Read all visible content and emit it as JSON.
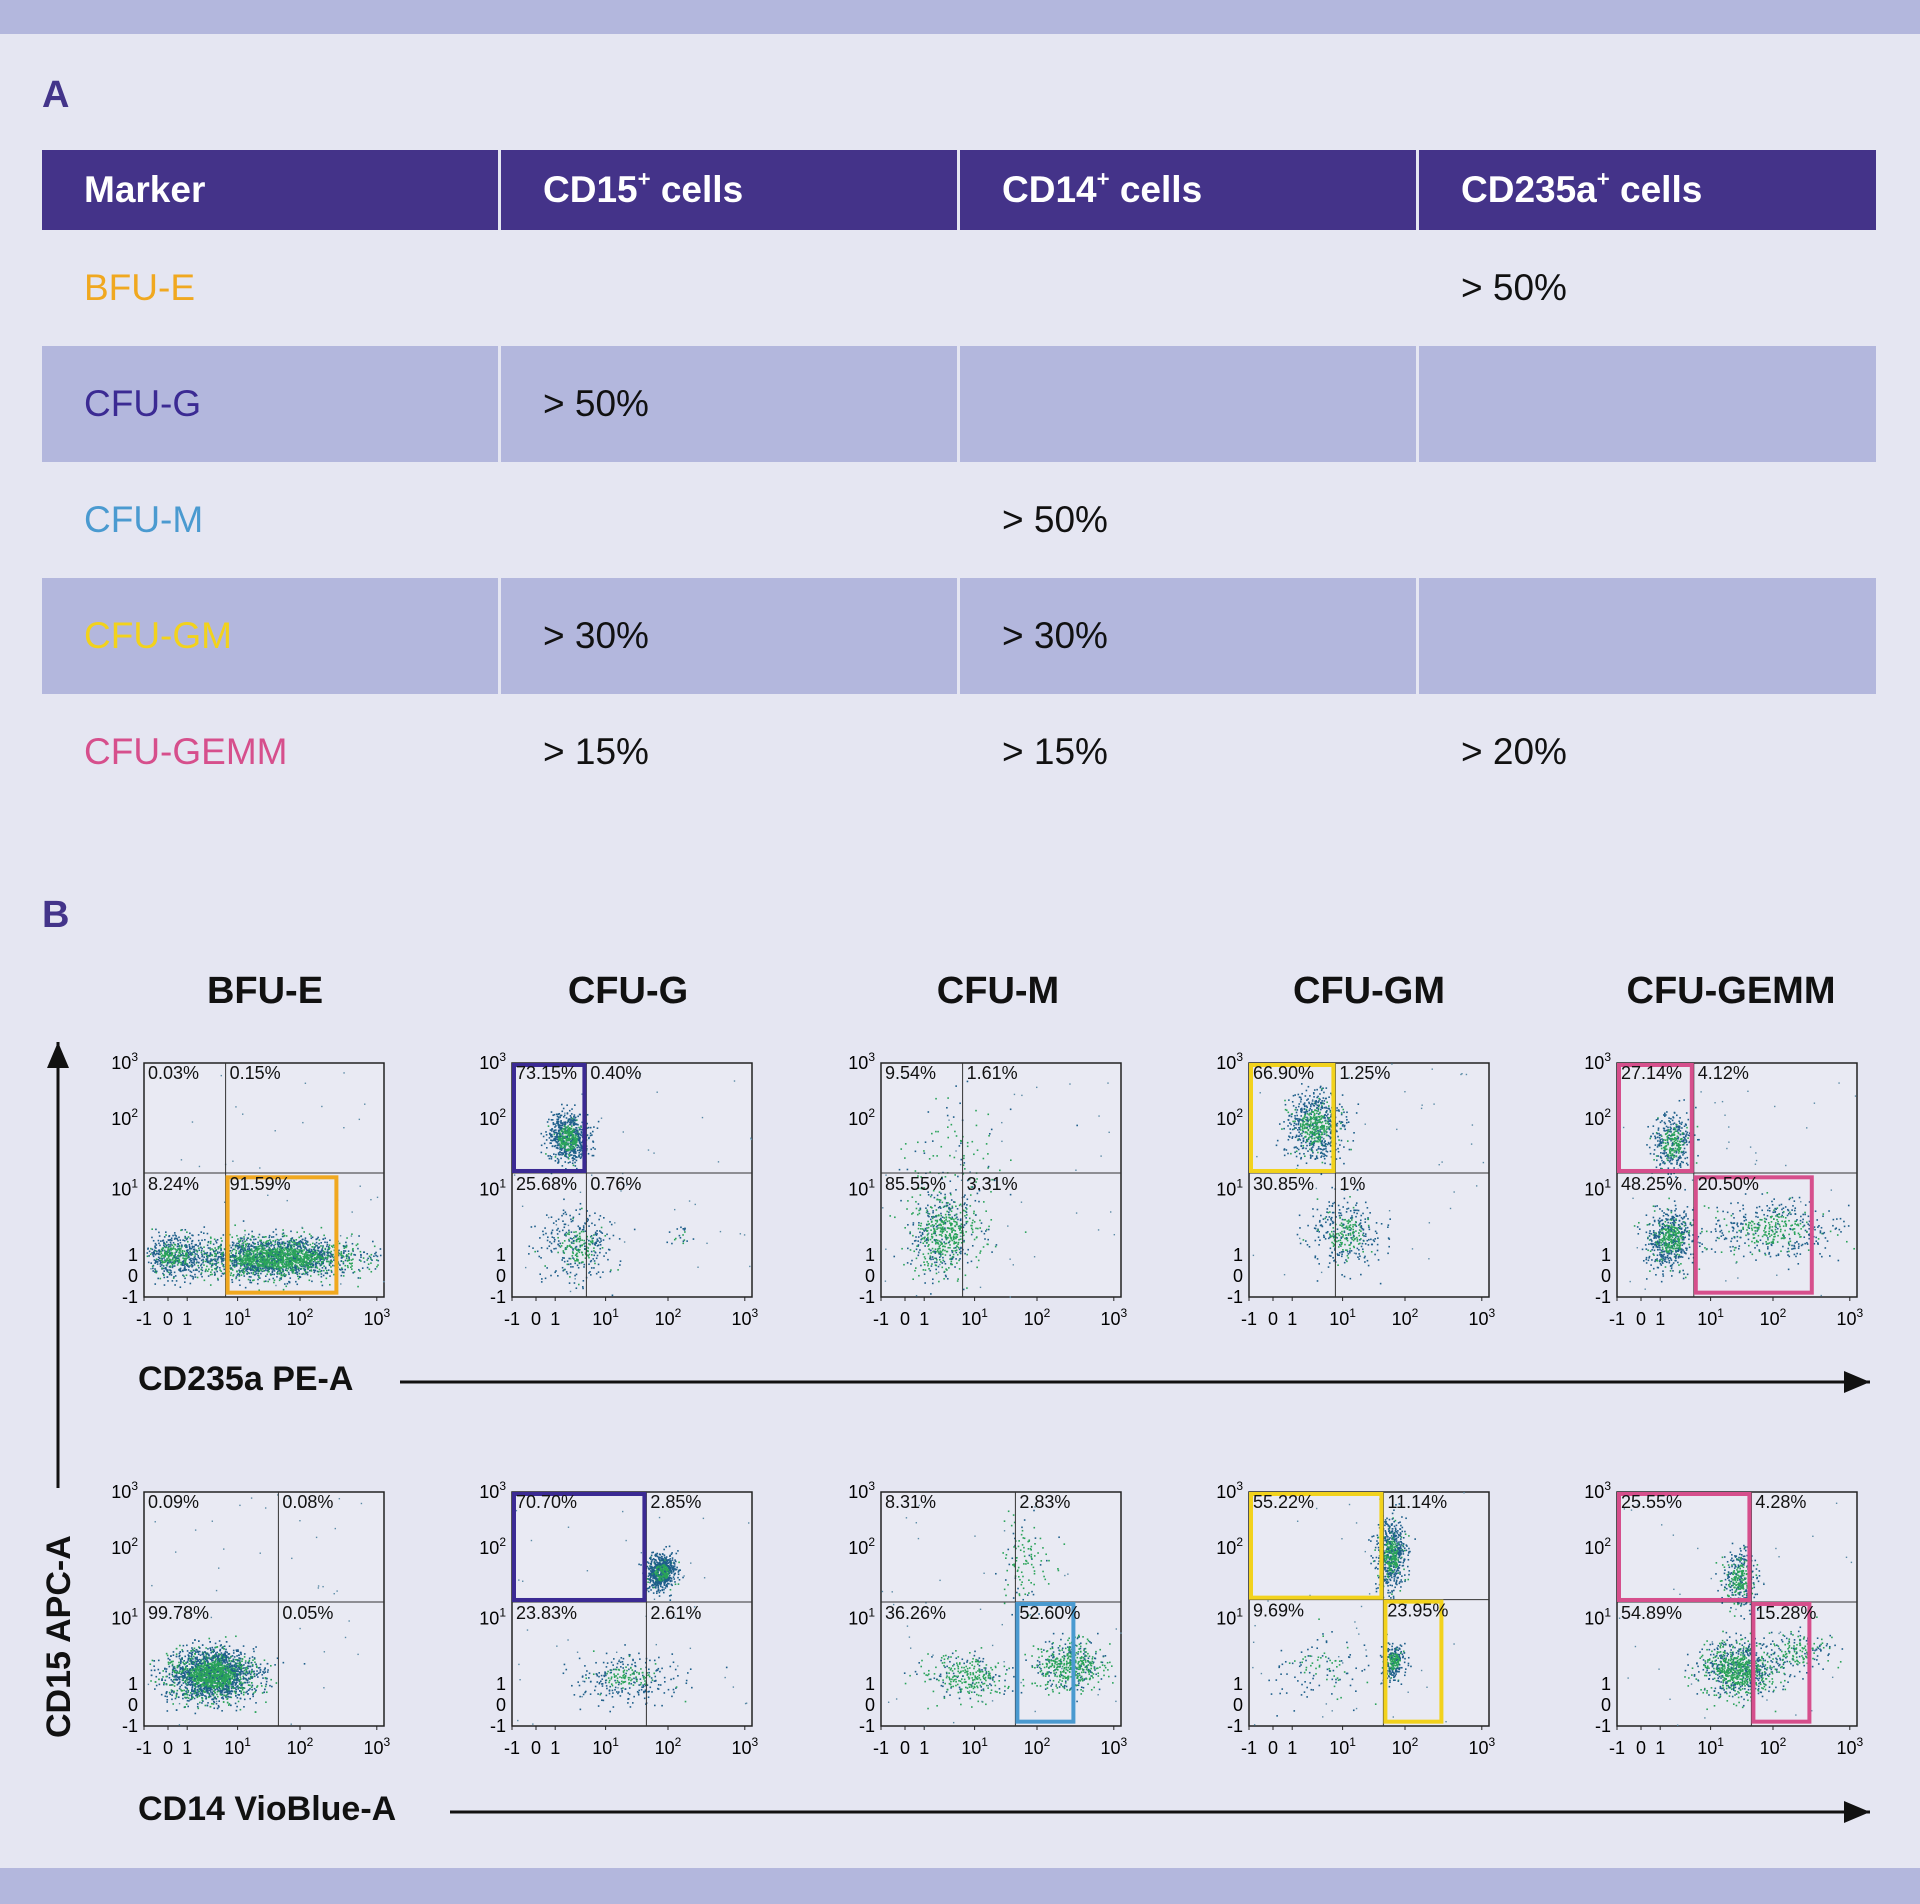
{
  "panel_labels": {
    "a": "A",
    "b": "B"
  },
  "table": {
    "headers": [
      "Marker",
      "CD15",
      "CD14",
      "CD235a"
    ],
    "header_sup": "+",
    "header_suffix": " cells",
    "rows": [
      {
        "name": "BFU-E",
        "color": "#f0a820",
        "values": [
          "",
          "",
          "> 50%"
        ]
      },
      {
        "name": "CFU-G",
        "color": "#3b2a93",
        "values": [
          "> 50%",
          "",
          ""
        ]
      },
      {
        "name": "CFU-M",
        "color": "#4a9ad0",
        "values": [
          "",
          " > 50%",
          ""
        ]
      },
      {
        "name": "CFU-GM",
        "color": "#f2d21c",
        "values": [
          "> 30%",
          "> 30%",
          ""
        ]
      },
      {
        "name": "CFU-GEMM",
        "color": "#d64f8c",
        "values": [
          "> 15%",
          "> 15%",
          "> 20%"
        ]
      }
    ]
  },
  "axes": {
    "x_top": "CD235a PE-A",
    "x_bottom": "CD14 VioBlue-A",
    "y": "CD15 APC-A",
    "x_ticks": [
      "-1",
      "0",
      "1",
      "10",
      "10",
      "10"
    ],
    "tick_exponents": [
      "",
      "",
      "",
      "1",
      "2",
      "3"
    ],
    "y_ticks": [
      "-1",
      "0",
      "1",
      "10",
      "10",
      "10"
    ],
    "y_tick_exponents": [
      "",
      "",
      "",
      "1",
      "2",
      "3"
    ]
  },
  "colors": {
    "dot_dark": "#1e5f8a",
    "dot_light": "#2aa35a",
    "header_bg": "#443389",
    "band": "#b3b7dd"
  },
  "chart_data": {
    "type": "scatter",
    "columns": [
      "BFU-E",
      "CFU-G",
      "CFU-M",
      "CFU-GM",
      "CFU-GEMM"
    ],
    "rows": [
      {
        "xlabel": "CD235a PE-A",
        "ylabel": "CD15 APC-A",
        "plots": [
          {
            "name": "BFU-E",
            "color": "#f0a820",
            "quadrants": {
              "UL": "0.03%",
              "UR": "0.15%",
              "LL": "8.24%",
              "LR": "91.59%"
            },
            "gates": [
              "LR"
            ]
          },
          {
            "name": "CFU-G",
            "color": "#3b2a93",
            "quadrants": {
              "UL": "73.15%",
              "UR": "0.40%",
              "LL": "25.68%",
              "LR": "0.76%"
            },
            "gates": [
              "UL"
            ]
          },
          {
            "name": "CFU-M",
            "color": "#4a9ad0",
            "quadrants": {
              "UL": "9.54%",
              "UR": "1.61%",
              "LL": "85.55%",
              "LR": "3.31%"
            },
            "gates": []
          },
          {
            "name": "CFU-GM",
            "color": "#f2d21c",
            "quadrants": {
              "UL": "66.90%",
              "UR": "1.25%",
              "LL": "30.85%",
              "LR": "1%"
            },
            "gates": [
              "UL"
            ]
          },
          {
            "name": "CFU-GEMM",
            "color": "#d64f8c",
            "quadrants": {
              "UL": "27.14%",
              "UR": "4.12%",
              "LL": "48.25%",
              "LR": "20.50%"
            },
            "gates": [
              "UL",
              "LR"
            ]
          }
        ]
      },
      {
        "xlabel": "CD14 VioBlue-A",
        "ylabel": "CD15 APC-A",
        "plots": [
          {
            "name": "BFU-E",
            "color": "#f0a820",
            "quadrants": {
              "UL": "0.09%",
              "UR": "0.08%",
              "LL": "99.78%",
              "LR": "0.05%"
            },
            "gates": []
          },
          {
            "name": "CFU-G",
            "color": "#3b2a93",
            "quadrants": {
              "UL": "70.70%",
              "UR": "2.85%",
              "LL": "23.83%",
              "LR": "2.61%"
            },
            "gates": [
              "UL"
            ]
          },
          {
            "name": "CFU-M",
            "color": "#4a9ad0",
            "quadrants": {
              "UL": "8.31%",
              "UR": "2.83%",
              "LL": "36.26%",
              "LR": "52.60%"
            },
            "gates": [
              "LR"
            ]
          },
          {
            "name": "CFU-GM",
            "color": "#f2d21c",
            "quadrants": {
              "UL": "55.22%",
              "UR": "11.14%",
              "LL": "9.69%",
              "LR": "23.95%"
            },
            "gates": [
              "UL",
              "LR"
            ]
          },
          {
            "name": "CFU-GEMM",
            "color": "#d64f8c",
            "quadrants": {
              "UL": "25.55%",
              "UR": "4.28%",
              "LL": "54.89%",
              "LR": "15.28%"
            },
            "gates": [
              "UL",
              "LR"
            ]
          }
        ]
      }
    ]
  }
}
